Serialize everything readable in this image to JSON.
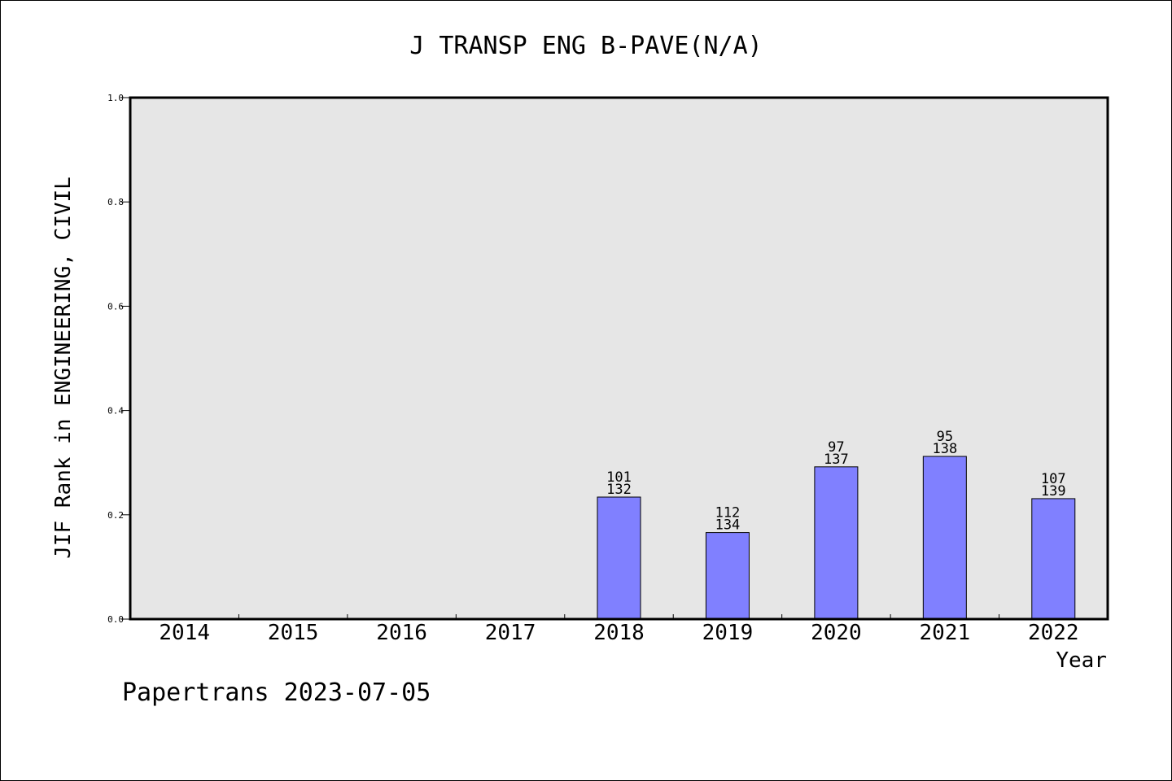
{
  "chart_data": {
    "type": "bar",
    "title": "J TRANSP ENG B-PAVE(N/A)",
    "xlabel": "Year",
    "ylabel": "JIF Rank in ENGINEERING, CIVIL",
    "ylim": [
      0.0,
      1.0
    ],
    "yticks": [
      "0.0",
      "0.2",
      "0.4",
      "0.6",
      "0.8",
      "1.0"
    ],
    "categories": [
      "2014",
      "2015",
      "2016",
      "2017",
      "2018",
      "2019",
      "2020",
      "2021",
      "2022"
    ],
    "values": [
      null,
      null,
      null,
      null,
      0.234,
      0.166,
      0.292,
      0.312,
      0.231
    ],
    "ranks": [
      null,
      null,
      null,
      null,
      "101",
      "112",
      "97",
      "95",
      "107"
    ],
    "totals": [
      null,
      null,
      null,
      null,
      "132",
      "134",
      "137",
      "138",
      "139"
    ],
    "bar_color": "#8080ff",
    "plot_background": "#e6e6e6",
    "grid": false
  },
  "footer": {
    "text": "Papertrans 2023-07-05"
  }
}
